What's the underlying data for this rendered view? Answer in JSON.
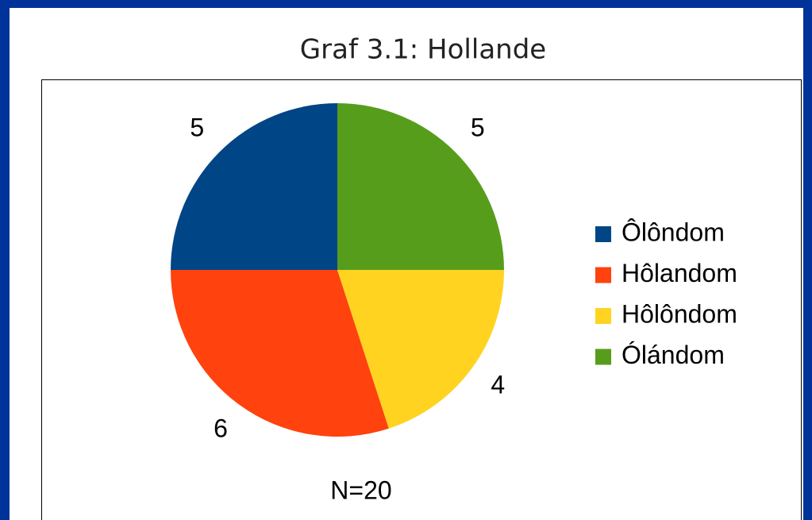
{
  "chart_data": {
    "type": "pie",
    "title": "Graf 3.1: Hollande",
    "categories": [
      "Ôlôndom",
      "Hôlandom",
      "Hôlôndom",
      "Ólándom"
    ],
    "values": [
      5,
      6,
      4,
      5
    ],
    "colors": [
      "#004586",
      "#ff420e",
      "#ffd320",
      "#579d1c"
    ],
    "annotation": "N=20",
    "legend": "right"
  }
}
